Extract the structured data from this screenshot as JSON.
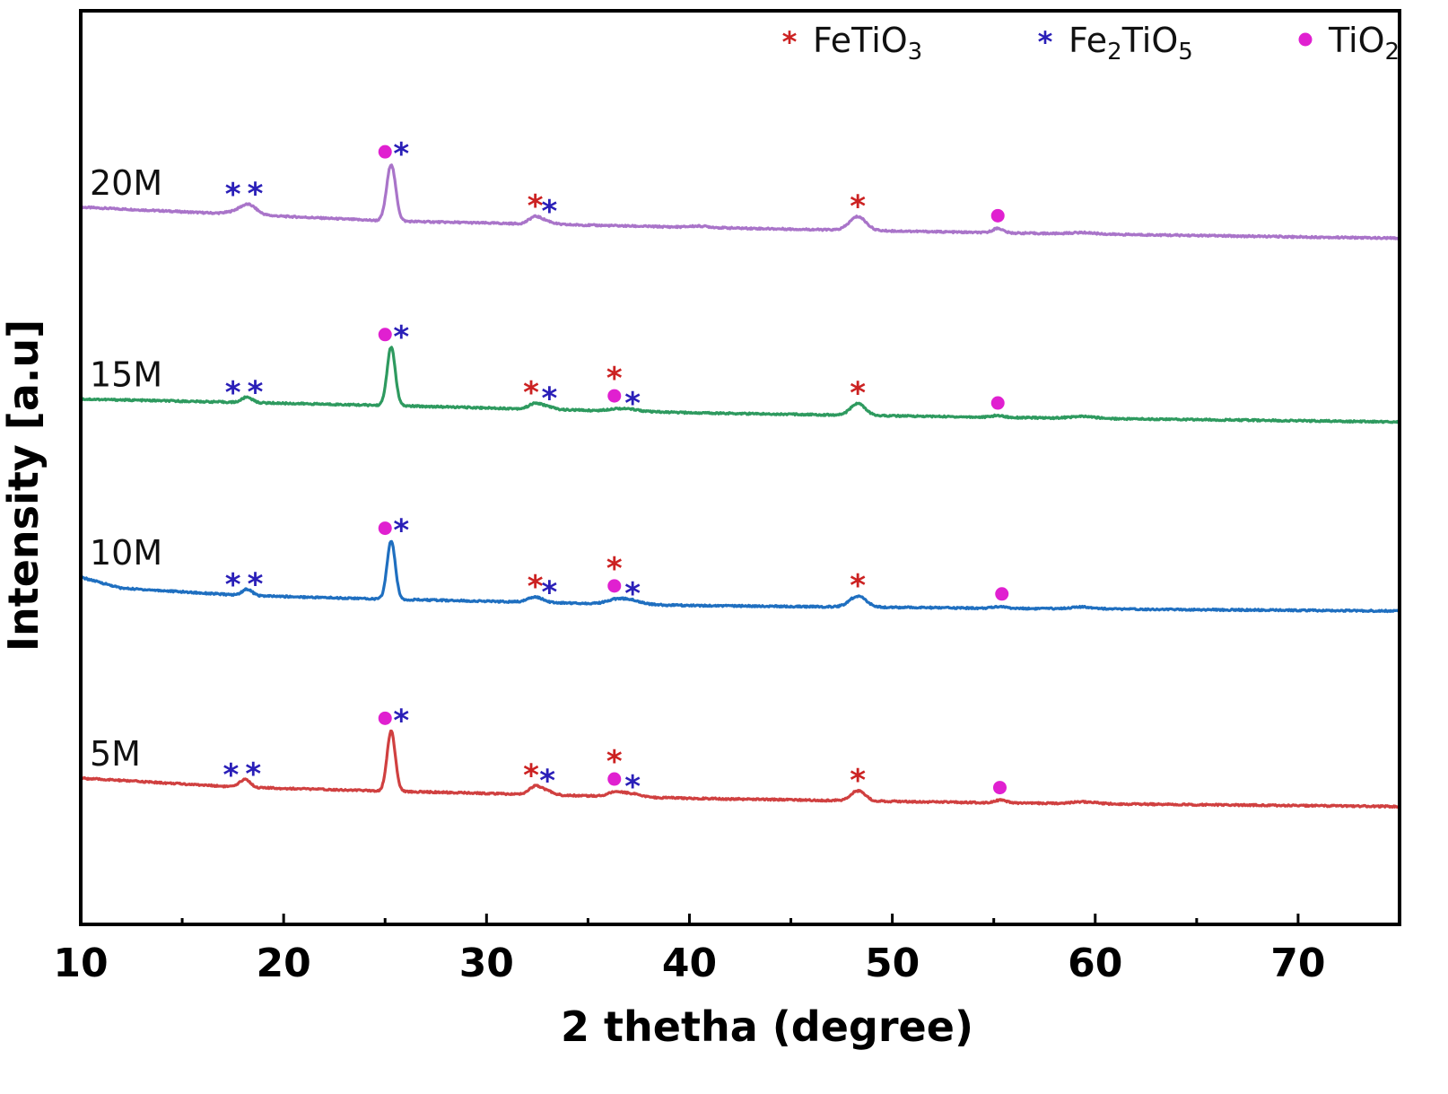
{
  "chart_data": {
    "type": "line",
    "xlabel": "2 thetha (degree)",
    "ylabel": "Intensity [a.u]",
    "xlim": [
      10,
      75
    ],
    "x_ticks": [
      10,
      20,
      30,
      40,
      50,
      60,
      70
    ],
    "y_ticks_shown": false,
    "grid": false,
    "legend_placement": "top-right",
    "legend": [
      {
        "phase": "FeTiO3",
        "base": "FeTiO",
        "sub": "3",
        "marker": "asterisk",
        "color": "#cc2222"
      },
      {
        "phase": "Fe2TiO5",
        "pre": "Fe",
        "sub1": "2",
        "mid": "TiO",
        "sub2": "5",
        "marker": "asterisk",
        "color": "#2a1fb8"
      },
      {
        "phase": "TiO2",
        "base": "TiO",
        "sub": "2",
        "marker": "dot",
        "color": "#e020d0"
      }
    ],
    "series": [
      {
        "name": "20M",
        "color": "#a974c9",
        "y_units": "stacked intensity (a.u.)",
        "baseline": [
          [
            10,
            78.5
          ],
          [
            25,
            77.0
          ],
          [
            40,
            76.3
          ],
          [
            55,
            75.7
          ],
          [
            75,
            75.1
          ]
        ],
        "peaks": [
          [
            18.0,
            0.5,
            0.55
          ],
          [
            18.3,
            0.7,
            0.35
          ],
          [
            25.3,
            6.2,
            0.22
          ],
          [
            32.4,
            0.8,
            0.3
          ],
          [
            33.0,
            0.3,
            0.3
          ],
          [
            48.3,
            1.5,
            0.4
          ],
          [
            55.2,
            0.5,
            0.25
          ],
          [
            59.4,
            0.15,
            0.6
          ],
          [
            40.5,
            0.15,
            0.5
          ]
        ],
        "markers": [
          {
            "x": 17.5,
            "type": "Fe2TiO5"
          },
          {
            "x": 18.6,
            "type": "Fe2TiO5"
          },
          {
            "x": 25.0,
            "type": "TiO2"
          },
          {
            "x": 25.8,
            "type": "Fe2TiO5"
          },
          {
            "x": 32.4,
            "type": "FeTiO3"
          },
          {
            "x": 33.1,
            "type": "Fe2TiO5"
          },
          {
            "x": 48.3,
            "type": "FeTiO3"
          },
          {
            "x": 55.2,
            "type": "TiO2"
          }
        ]
      },
      {
        "name": "15M",
        "color": "#2e9a5f",
        "y_units": "stacked intensity (a.u.)",
        "baseline": [
          [
            10,
            57.5
          ],
          [
            25,
            56.8
          ],
          [
            40,
            56.0
          ],
          [
            55,
            55.5
          ],
          [
            75,
            55.0
          ]
        ],
        "peaks": [
          [
            18.2,
            0.6,
            0.25
          ],
          [
            25.3,
            6.4,
            0.2
          ],
          [
            32.4,
            0.6,
            0.3
          ],
          [
            33.0,
            0.3,
            0.3
          ],
          [
            36.4,
            0.25,
            0.4
          ],
          [
            37.2,
            0.2,
            0.4
          ],
          [
            48.3,
            1.3,
            0.35
          ],
          [
            55.2,
            0.2,
            0.3
          ],
          [
            59.4,
            0.2,
            0.6
          ]
        ],
        "markers": [
          {
            "x": 17.5,
            "type": "Fe2TiO5"
          },
          {
            "x": 18.6,
            "type": "Fe2TiO5"
          },
          {
            "x": 25.0,
            "type": "TiO2"
          },
          {
            "x": 25.8,
            "type": "Fe2TiO5"
          },
          {
            "x": 32.2,
            "type": "FeTiO3"
          },
          {
            "x": 33.1,
            "type": "Fe2TiO5"
          },
          {
            "x": 36.3,
            "type": "TiO2"
          },
          {
            "x": 36.3,
            "type": "FeTiO3"
          },
          {
            "x": 37.2,
            "type": "Fe2TiO5"
          },
          {
            "x": 48.3,
            "type": "FeTiO3"
          },
          {
            "x": 55.2,
            "type": "TiO2"
          }
        ]
      },
      {
        "name": "10M",
        "color": "#1f6fc0",
        "y_units": "stacked intensity (a.u.)",
        "baseline": [
          [
            10,
            38.0
          ],
          [
            12,
            36.8
          ],
          [
            18,
            36.0
          ],
          [
            25,
            35.6
          ],
          [
            40,
            34.9
          ],
          [
            55,
            34.6
          ],
          [
            75,
            34.3
          ]
        ],
        "peaks": [
          [
            18.2,
            0.7,
            0.25
          ],
          [
            25.3,
            6.4,
            0.2
          ],
          [
            32.4,
            0.6,
            0.35
          ],
          [
            36.4,
            0.5,
            0.45
          ],
          [
            37.2,
            0.4,
            0.45
          ],
          [
            48.3,
            1.2,
            0.4
          ],
          [
            55.3,
            0.2,
            0.3
          ],
          [
            59.4,
            0.2,
            0.6
          ]
        ],
        "markers": [
          {
            "x": 17.5,
            "type": "Fe2TiO5"
          },
          {
            "x": 18.6,
            "type": "Fe2TiO5"
          },
          {
            "x": 25.0,
            "type": "TiO2"
          },
          {
            "x": 25.8,
            "type": "Fe2TiO5"
          },
          {
            "x": 32.4,
            "type": "FeTiO3"
          },
          {
            "x": 33.1,
            "type": "Fe2TiO5"
          },
          {
            "x": 36.3,
            "type": "TiO2"
          },
          {
            "x": 36.3,
            "type": "FeTiO3"
          },
          {
            "x": 37.2,
            "type": "Fe2TiO5"
          },
          {
            "x": 48.3,
            "type": "FeTiO3"
          },
          {
            "x": 55.4,
            "type": "TiO2"
          }
        ]
      },
      {
        "name": "5M",
        "color": "#d04040",
        "y_units": "stacked intensity (a.u.)",
        "baseline": [
          [
            10,
            16.0
          ],
          [
            18,
            15.0
          ],
          [
            25,
            14.6
          ],
          [
            40,
            13.8
          ],
          [
            55,
            13.3
          ],
          [
            75,
            12.9
          ]
        ],
        "peaks": [
          [
            18.1,
            0.9,
            0.25
          ],
          [
            25.3,
            6.6,
            0.2
          ],
          [
            32.4,
            0.9,
            0.3
          ],
          [
            33.0,
            0.4,
            0.3
          ],
          [
            36.4,
            0.5,
            0.4
          ],
          [
            37.2,
            0.3,
            0.4
          ],
          [
            48.3,
            1.1,
            0.35
          ],
          [
            55.3,
            0.3,
            0.3
          ],
          [
            59.4,
            0.2,
            0.6
          ]
        ],
        "markers": [
          {
            "x": 17.4,
            "type": "Fe2TiO5"
          },
          {
            "x": 18.5,
            "type": "Fe2TiO5"
          },
          {
            "x": 25.0,
            "type": "TiO2"
          },
          {
            "x": 25.8,
            "type": "Fe2TiO5"
          },
          {
            "x": 32.2,
            "type": "FeTiO3"
          },
          {
            "x": 33.0,
            "type": "Fe2TiO5"
          },
          {
            "x": 36.3,
            "type": "TiO2"
          },
          {
            "x": 36.3,
            "type": "FeTiO3"
          },
          {
            "x": 37.2,
            "type": "Fe2TiO5"
          },
          {
            "x": 48.3,
            "type": "FeTiO3"
          },
          {
            "x": 55.3,
            "type": "TiO2"
          }
        ]
      }
    ]
  }
}
